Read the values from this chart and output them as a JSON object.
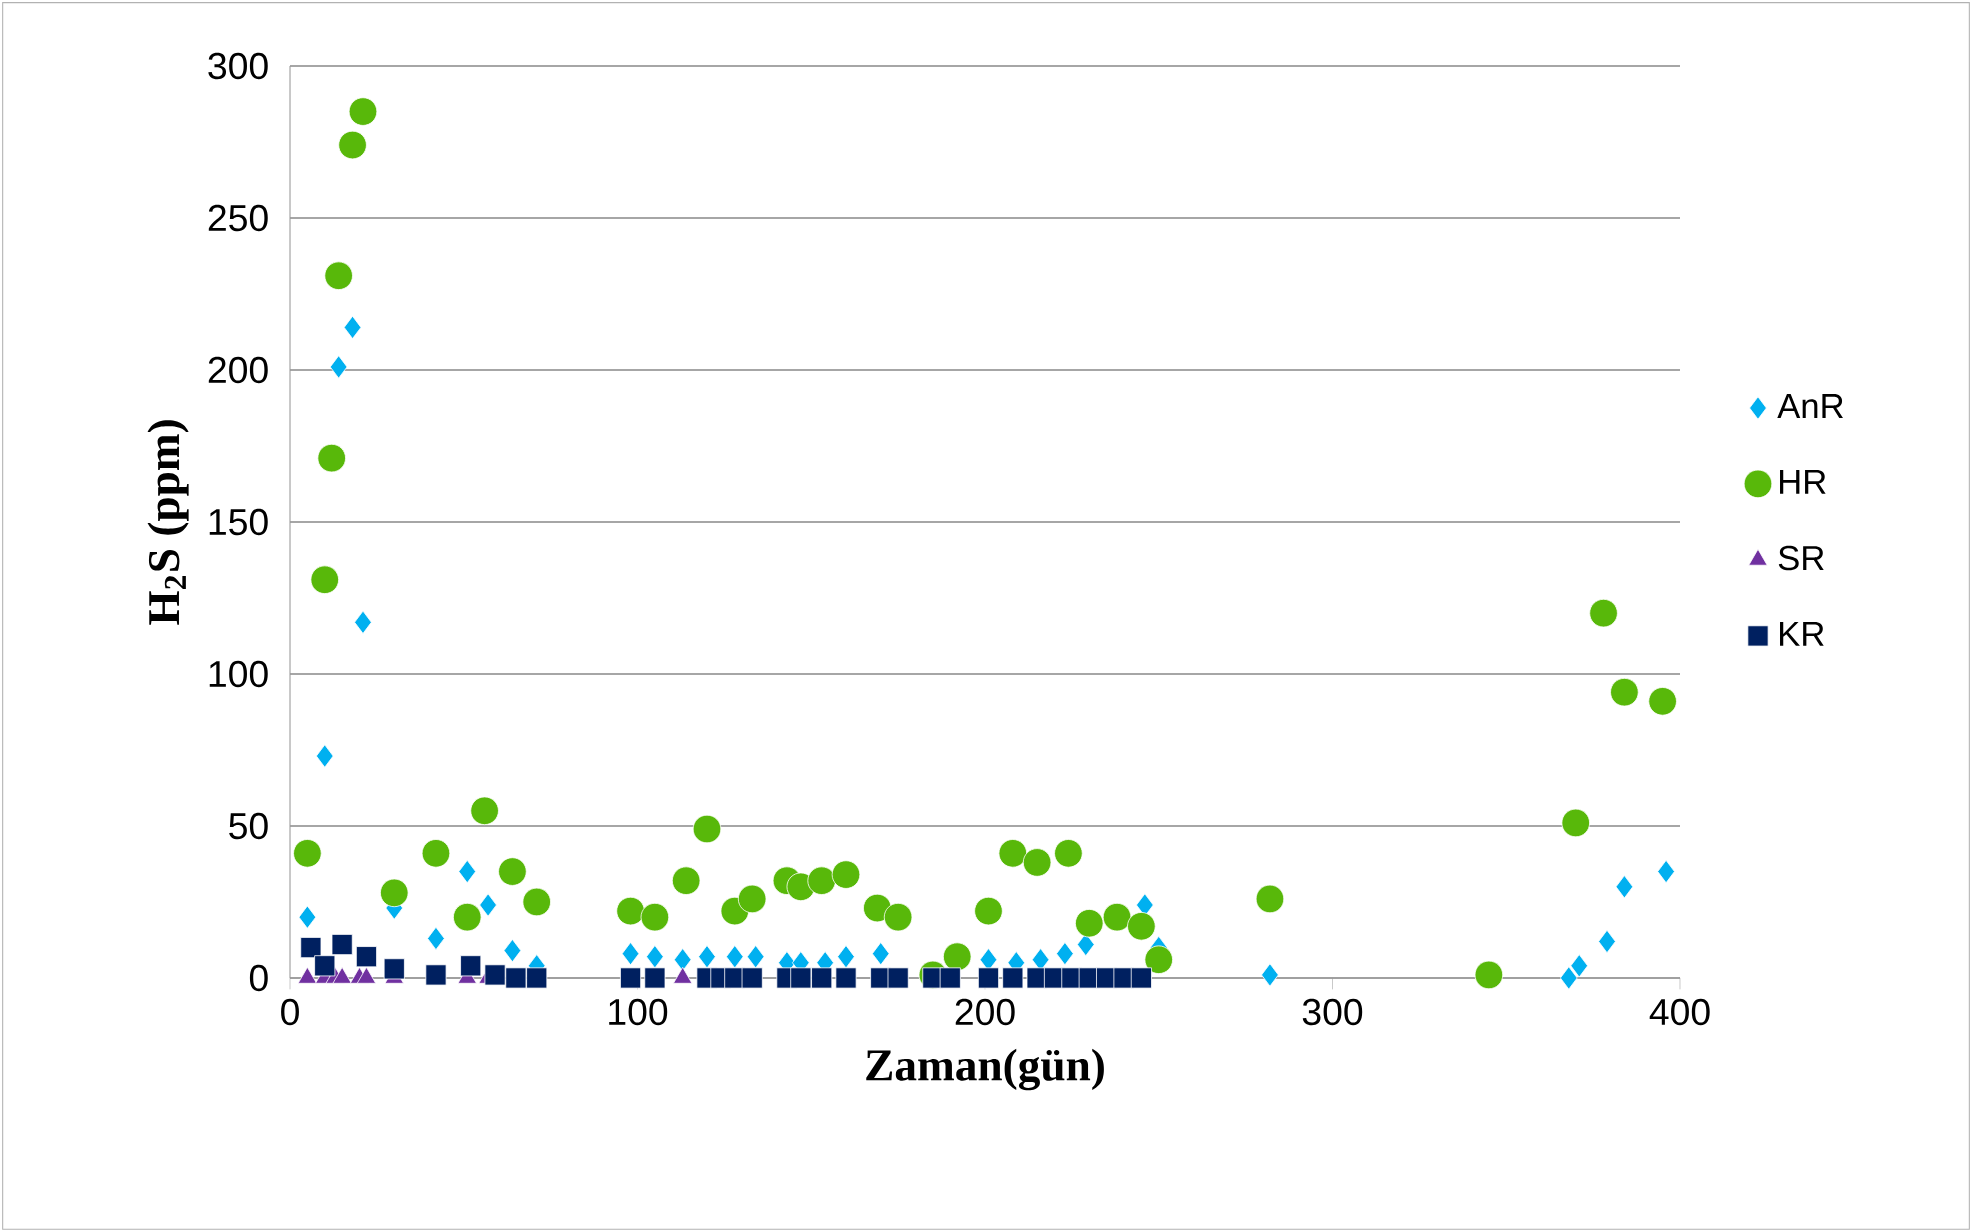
{
  "chart_data": {
    "type": "scatter",
    "xlabel": "Zaman(gün)",
    "ylabel": "H$_{2}$S (ppm)",
    "xlim": [
      0,
      400
    ],
    "xticks": [
      0,
      100,
      200,
      300,
      400
    ],
    "ylim": [
      0,
      300
    ],
    "yticks": [
      0,
      50,
      100,
      150,
      200,
      250,
      300
    ],
    "grid": "y",
    "legend": "right",
    "series": [
      {
        "name": "AnR",
        "color": "#00b0f0",
        "marker": "diamond",
        "x": [
          5,
          10,
          14,
          18,
          21,
          30,
          42,
          51,
          57,
          64,
          71,
          98,
          105,
          113,
          120,
          128,
          134,
          143,
          147,
          154,
          160,
          170,
          201,
          209,
          216,
          223,
          229,
          246,
          250,
          282,
          368,
          371,
          379,
          384,
          396
        ],
        "values": [
          20,
          73,
          201,
          214,
          117,
          23,
          13,
          35,
          24,
          9,
          4,
          8,
          7,
          6,
          7,
          7,
          7,
          5,
          5,
          5,
          7,
          8,
          6,
          5,
          6,
          8,
          11,
          24,
          10,
          1,
          0,
          4,
          12,
          30,
          35
        ]
      },
      {
        "name": "HR",
        "color": "#58b80a",
        "marker": "circle",
        "x": [
          5,
          10,
          12,
          14,
          18,
          21,
          30,
          42,
          51,
          56,
          64,
          71,
          98,
          105,
          114,
          120,
          128,
          133,
          143,
          147,
          153,
          160,
          169,
          175,
          185,
          192,
          201,
          208,
          215,
          224,
          230,
          238,
          245,
          250,
          282,
          345,
          370,
          378,
          384,
          395
        ],
        "values": [
          41,
          131,
          171,
          231,
          274,
          285,
          28,
          41,
          20,
          55,
          35,
          25,
          22,
          20,
          32,
          49,
          22,
          26,
          32,
          30,
          32,
          34,
          23,
          20,
          1,
          7,
          22,
          41,
          38,
          41,
          18,
          20,
          17,
          6,
          26,
          1,
          51,
          120,
          94,
          91
        ]
      },
      {
        "name": "SR",
        "color": "#7030a0",
        "marker": "triangle",
        "x": [
          5,
          10,
          13,
          15,
          20,
          22,
          30,
          51,
          57,
          113
        ],
        "values": [
          0,
          0,
          0,
          0,
          0,
          0,
          0,
          0,
          0,
          0
        ]
      },
      {
        "name": "KR",
        "color": "#002060",
        "marker": "square",
        "x": [
          6,
          10,
          15,
          22,
          30,
          42,
          52,
          59,
          65,
          71,
          98,
          105,
          120,
          124,
          128,
          133,
          143,
          147,
          153,
          160,
          170,
          175,
          185,
          190,
          201,
          208,
          215,
          220,
          225,
          230,
          235,
          240,
          245
        ],
        "values": [
          10,
          4,
          11,
          7,
          3,
          1,
          4,
          1,
          0,
          0,
          0,
          0,
          0,
          0,
          0,
          0,
          0,
          0,
          0,
          0,
          0,
          0,
          0,
          0,
          0,
          0,
          0,
          0,
          0,
          0,
          0,
          0,
          0
        ]
      }
    ]
  }
}
